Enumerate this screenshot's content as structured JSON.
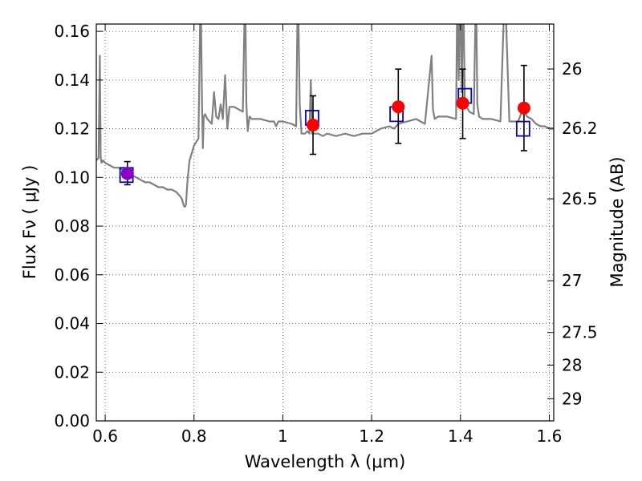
{
  "chart_data": {
    "type": "scatter",
    "xlabel": "Wavelength  λ (μm)",
    "ylabel": "Flux  Fν  ( μJy )",
    "ylabel_right": "Magnitude (AB)",
    "xlim": [
      0.58,
      1.61
    ],
    "ylim": [
      0.0,
      0.163
    ],
    "grid": true,
    "x_ticks": [
      0.6,
      0.8,
      1.0,
      1.2,
      1.4,
      1.6
    ],
    "x_tick_labels": [
      "0.6",
      "0.8",
      "1",
      "1.2",
      "1.4",
      "1.6"
    ],
    "y_ticks": [
      0.0,
      0.02,
      0.04,
      0.06,
      0.08,
      0.1,
      0.12,
      0.14,
      0.16
    ],
    "y_tick_labels": [
      "0.00",
      "0.02",
      "0.04",
      "0.06",
      "0.08",
      "0.10",
      "0.12",
      "0.14",
      "0.16"
    ],
    "right_ticks": [
      {
        "mag": 26,
        "label": "26"
      },
      {
        "mag": 26.2,
        "label": "26.2"
      },
      {
        "mag": 26.5,
        "label": "26.5"
      },
      {
        "mag": 27,
        "label": "27"
      },
      {
        "mag": 27.5,
        "label": "27.5"
      },
      {
        "mag": 28,
        "label": "28"
      },
      {
        "mag": 29,
        "label": "29"
      }
    ],
    "colors": {
      "model": "#808080",
      "observed": "#ff0000",
      "model_band": "#0000cc",
      "optical_point": "#8b00c8",
      "errorbar": "#000000",
      "grid": "#444444"
    },
    "model_spectrum": {
      "x": [
        0.58,
        0.585,
        0.588,
        0.59,
        0.592,
        0.595,
        0.6,
        0.61,
        0.62,
        0.63,
        0.64,
        0.65,
        0.66,
        0.67,
        0.68,
        0.69,
        0.7,
        0.71,
        0.72,
        0.73,
        0.74,
        0.75,
        0.76,
        0.765,
        0.77,
        0.773,
        0.776,
        0.778,
        0.78,
        0.782,
        0.784,
        0.786,
        0.79,
        0.795,
        0.8,
        0.81,
        0.815,
        0.818,
        0.82,
        0.822,
        0.825,
        0.83,
        0.84,
        0.845,
        0.85,
        0.855,
        0.86,
        0.865,
        0.87,
        0.875,
        0.88,
        0.89,
        0.9,
        0.91,
        0.915,
        0.918,
        0.921,
        0.925,
        0.93,
        0.95,
        0.97,
        0.98,
        0.985,
        0.99,
        1.0,
        1.02,
        1.03,
        1.034,
        1.038,
        1.042,
        1.05,
        1.055,
        1.06,
        1.063,
        1.066,
        1.07,
        1.08,
        1.09,
        1.1,
        1.12,
        1.14,
        1.16,
        1.18,
        1.2,
        1.22,
        1.24,
        1.25,
        1.26,
        1.28,
        1.3,
        1.32,
        1.335,
        1.338,
        1.342,
        1.35,
        1.37,
        1.39,
        1.393,
        1.396,
        1.4,
        1.403,
        1.406,
        1.41,
        1.42,
        1.43,
        1.435,
        1.438,
        1.442,
        1.45,
        1.47,
        1.49,
        1.5,
        1.51,
        1.53,
        1.54,
        1.55,
        1.56,
        1.57,
        1.58,
        1.59,
        1.6,
        1.61
      ],
      "y": [
        0.107,
        0.108,
        0.15,
        0.108,
        0.106,
        0.107,
        0.106,
        0.105,
        0.104,
        0.104,
        0.103,
        0.101,
        0.101,
        0.1,
        0.099,
        0.098,
        0.098,
        0.097,
        0.096,
        0.096,
        0.095,
        0.095,
        0.094,
        0.093,
        0.092,
        0.091,
        0.089,
        0.088,
        0.088,
        0.089,
        0.095,
        0.1,
        0.107,
        0.11,
        0.113,
        0.116,
        0.18,
        0.13,
        0.112,
        0.125,
        0.126,
        0.124,
        0.122,
        0.135,
        0.125,
        0.124,
        0.13,
        0.124,
        0.142,
        0.12,
        0.129,
        0.129,
        0.128,
        0.127,
        0.18,
        0.13,
        0.119,
        0.125,
        0.124,
        0.124,
        0.123,
        0.123,
        0.121,
        0.123,
        0.123,
        0.122,
        0.121,
        0.18,
        0.13,
        0.118,
        0.118,
        0.119,
        0.118,
        0.14,
        0.118,
        0.118,
        0.118,
        0.117,
        0.118,
        0.117,
        0.118,
        0.117,
        0.118,
        0.118,
        0.12,
        0.121,
        0.12,
        0.122,
        0.123,
        0.124,
        0.122,
        0.15,
        0.128,
        0.124,
        0.125,
        0.125,
        0.124,
        0.18,
        0.14,
        0.18,
        0.135,
        0.18,
        0.13,
        0.127,
        0.126,
        0.18,
        0.13,
        0.125,
        0.124,
        0.124,
        0.123,
        0.18,
        0.123,
        0.123,
        0.128,
        0.125,
        0.124,
        0.122,
        0.121,
        0.121,
        0.12,
        0.12
      ],
      "note_clip": "peaks exceed ylim and are clipped at the top edge"
    },
    "observed_points": [
      {
        "x": 0.65,
        "y": 0.1016,
        "err_low": 0.097,
        "err_high": 0.1065,
        "color_key": "optical_point"
      },
      {
        "x": 1.068,
        "y": 0.1215,
        "err_low": 0.1095,
        "err_high": 0.1335,
        "color_key": "observed"
      },
      {
        "x": 1.26,
        "y": 0.129,
        "err_low": 0.114,
        "err_high": 0.1445,
        "color_key": "observed"
      },
      {
        "x": 1.405,
        "y": 0.1305,
        "err_low": 0.116,
        "err_high": 0.1445,
        "color_key": "observed"
      },
      {
        "x": 1.543,
        "y": 0.1285,
        "err_low": 0.111,
        "err_high": 0.146,
        "color_key": "observed"
      }
    ],
    "model_band_points": [
      {
        "x": 0.648,
        "y": 0.101
      },
      {
        "x": 1.066,
        "y": 0.1245
      },
      {
        "x": 1.256,
        "y": 0.126
      },
      {
        "x": 1.41,
        "y": 0.1335
      },
      {
        "x": 1.541,
        "y": 0.12
      }
    ]
  }
}
